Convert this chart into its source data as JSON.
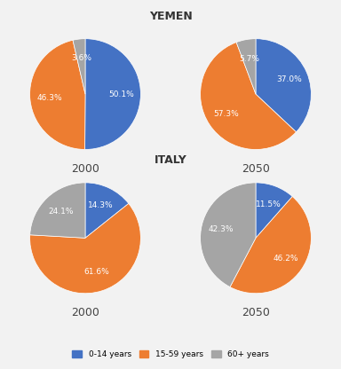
{
  "title_yemen": "YEMEN",
  "title_italy": "ITALY",
  "color_0_14": "#4472C4",
  "color_15_59": "#ED7D31",
  "color_60plus": "#A5A5A5",
  "yemen_2000": [
    50.1,
    46.3,
    3.6
  ],
  "yemen_2050": [
    37.0,
    57.3,
    5.7
  ],
  "italy_2000": [
    14.3,
    61.6,
    24.1
  ],
  "italy_2050": [
    11.5,
    46.2,
    42.3
  ],
  "labels_yemen_2000": [
    "50.1%",
    "46.3%",
    "3.6%"
  ],
  "labels_yemen_2050": [
    "37.0%",
    "57.3%",
    "5.7%"
  ],
  "labels_italy_2000": [
    "14.3%",
    "61.6%",
    "24.1%"
  ],
  "labels_italy_2050": [
    "11.5%",
    "46.2%",
    "42.3%"
  ],
  "year_labels": [
    "2000",
    "2050"
  ],
  "legend_labels": [
    "0-14 years",
    "15-59 years",
    "60+ years"
  ],
  "background_color": "#F2F2F2",
  "panel_color": "#FFFFFF"
}
